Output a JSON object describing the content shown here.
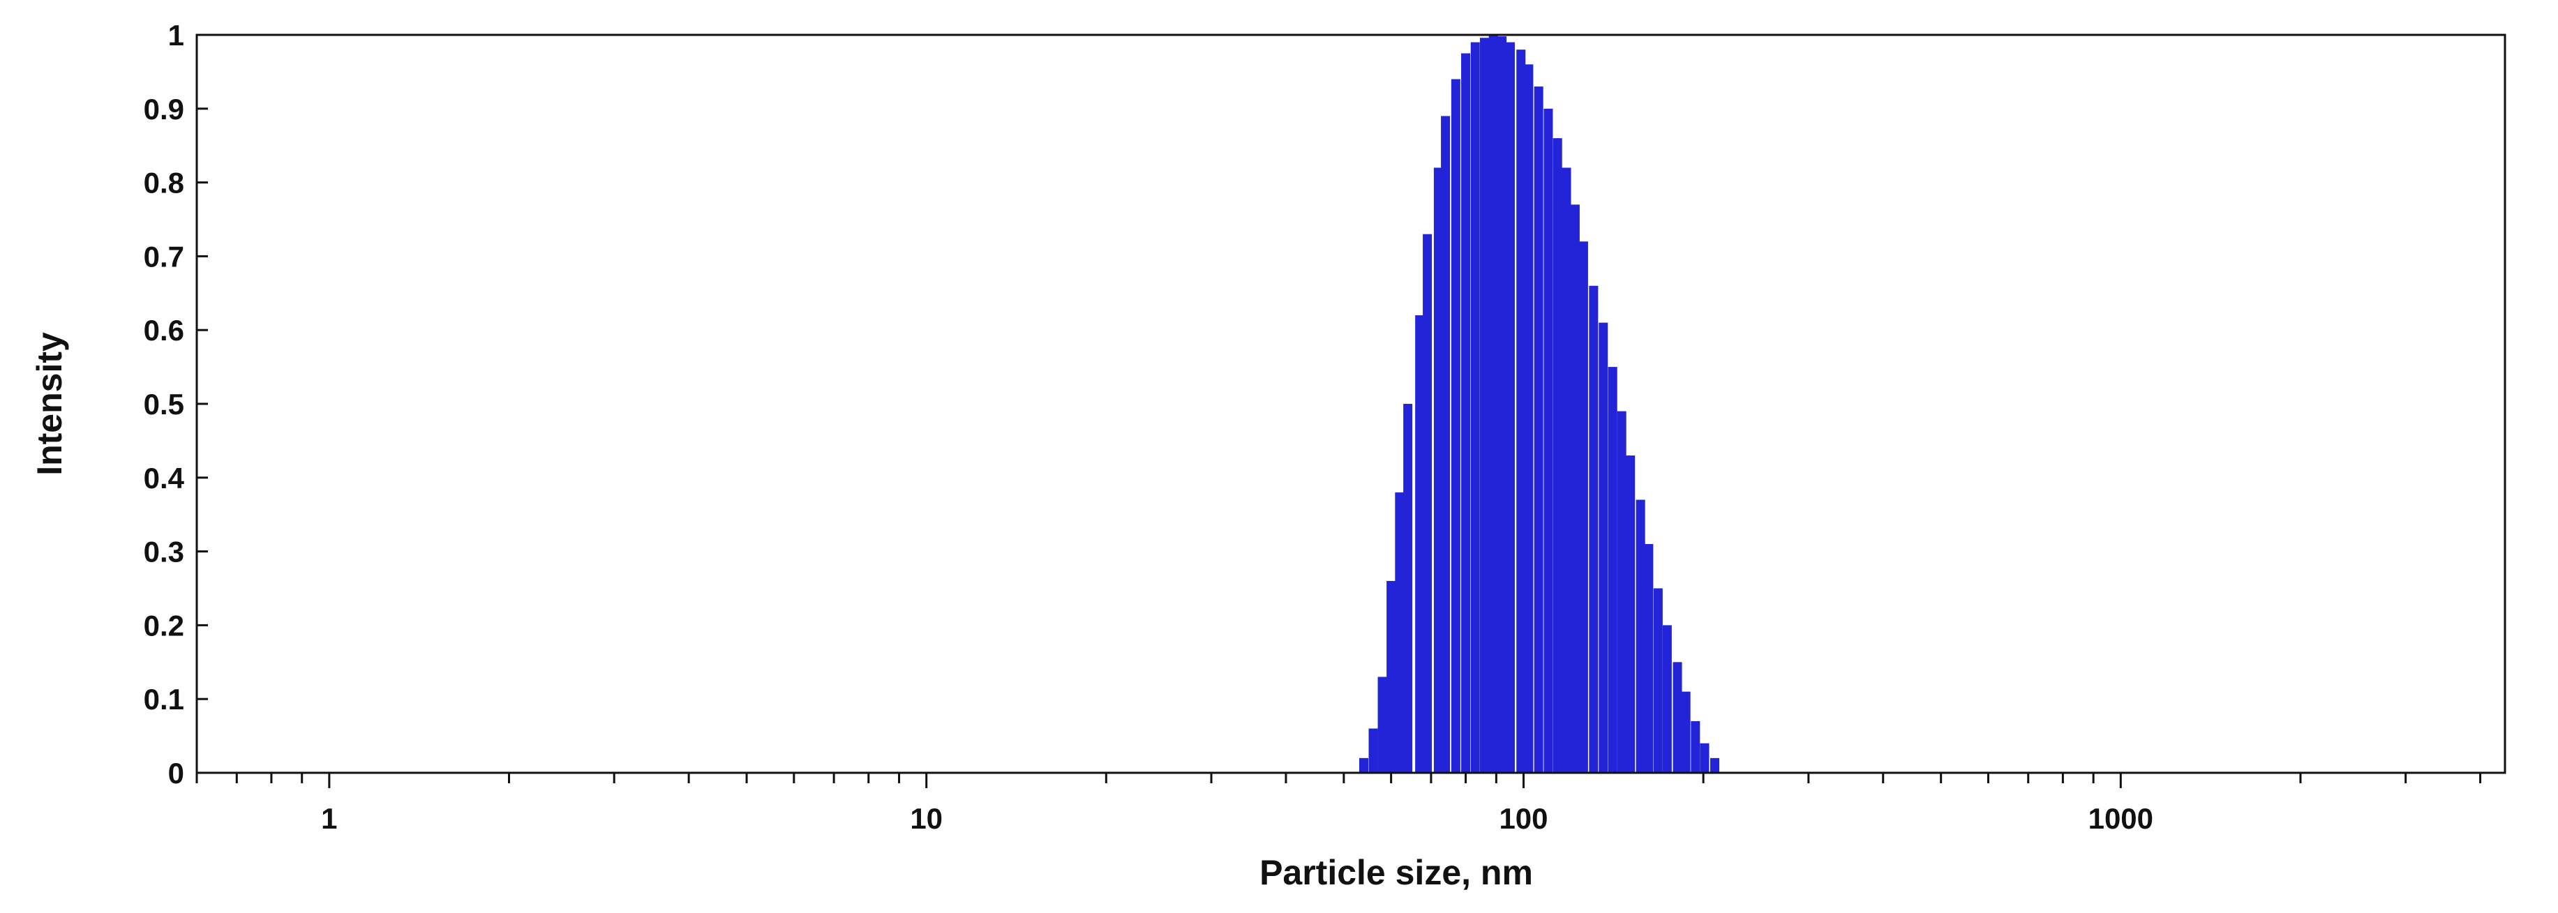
{
  "chart_data": {
    "type": "bar",
    "xscale": "log",
    "xlabel": "Particle size, nm",
    "ylabel": "Intensity",
    "xlim": [
      0.6,
      4400
    ],
    "ylim": [
      0,
      1
    ],
    "x_ticks": [
      {
        "value": 1,
        "label": "1"
      },
      {
        "value": 10,
        "label": "10"
      },
      {
        "value": 100,
        "label": "100"
      },
      {
        "value": 1000,
        "label": "1000"
      }
    ],
    "y_ticks": [
      {
        "value": 0,
        "label": "0"
      },
      {
        "value": 0.1,
        "label": "0.1"
      },
      {
        "value": 0.2,
        "label": "0.2"
      },
      {
        "value": 0.3,
        "label": "0.3"
      },
      {
        "value": 0.4,
        "label": "0.4"
      },
      {
        "value": 0.5,
        "label": "0.5"
      },
      {
        "value": 0.6,
        "label": "0.6"
      },
      {
        "value": 0.7,
        "label": "0.7"
      },
      {
        "value": 0.8,
        "label": "0.8"
      },
      {
        "value": 0.9,
        "label": "0.9"
      },
      {
        "value": 1,
        "label": "1"
      }
    ],
    "grid": false,
    "bar_color": "#2323d8",
    "x": [
      54,
      56,
      58,
      60,
      62,
      64,
      67,
      69,
      72,
      74,
      77,
      80,
      83,
      86,
      89,
      92,
      95,
      99,
      102,
      106,
      110,
      114,
      118,
      122,
      126,
      131,
      136,
      141,
      146,
      151,
      157,
      162,
      168,
      174,
      181,
      187,
      194,
      201,
      209
    ],
    "values": [
      0.02,
      0.06,
      0.13,
      0.26,
      0.38,
      0.5,
      0.62,
      0.73,
      0.82,
      0.89,
      0.94,
      0.975,
      0.99,
      0.996,
      1.0,
      0.998,
      0.99,
      0.98,
      0.96,
      0.93,
      0.9,
      0.86,
      0.82,
      0.77,
      0.72,
      0.66,
      0.61,
      0.55,
      0.49,
      0.43,
      0.37,
      0.31,
      0.25,
      0.2,
      0.15,
      0.11,
      0.07,
      0.04,
      0.02
    ]
  }
}
